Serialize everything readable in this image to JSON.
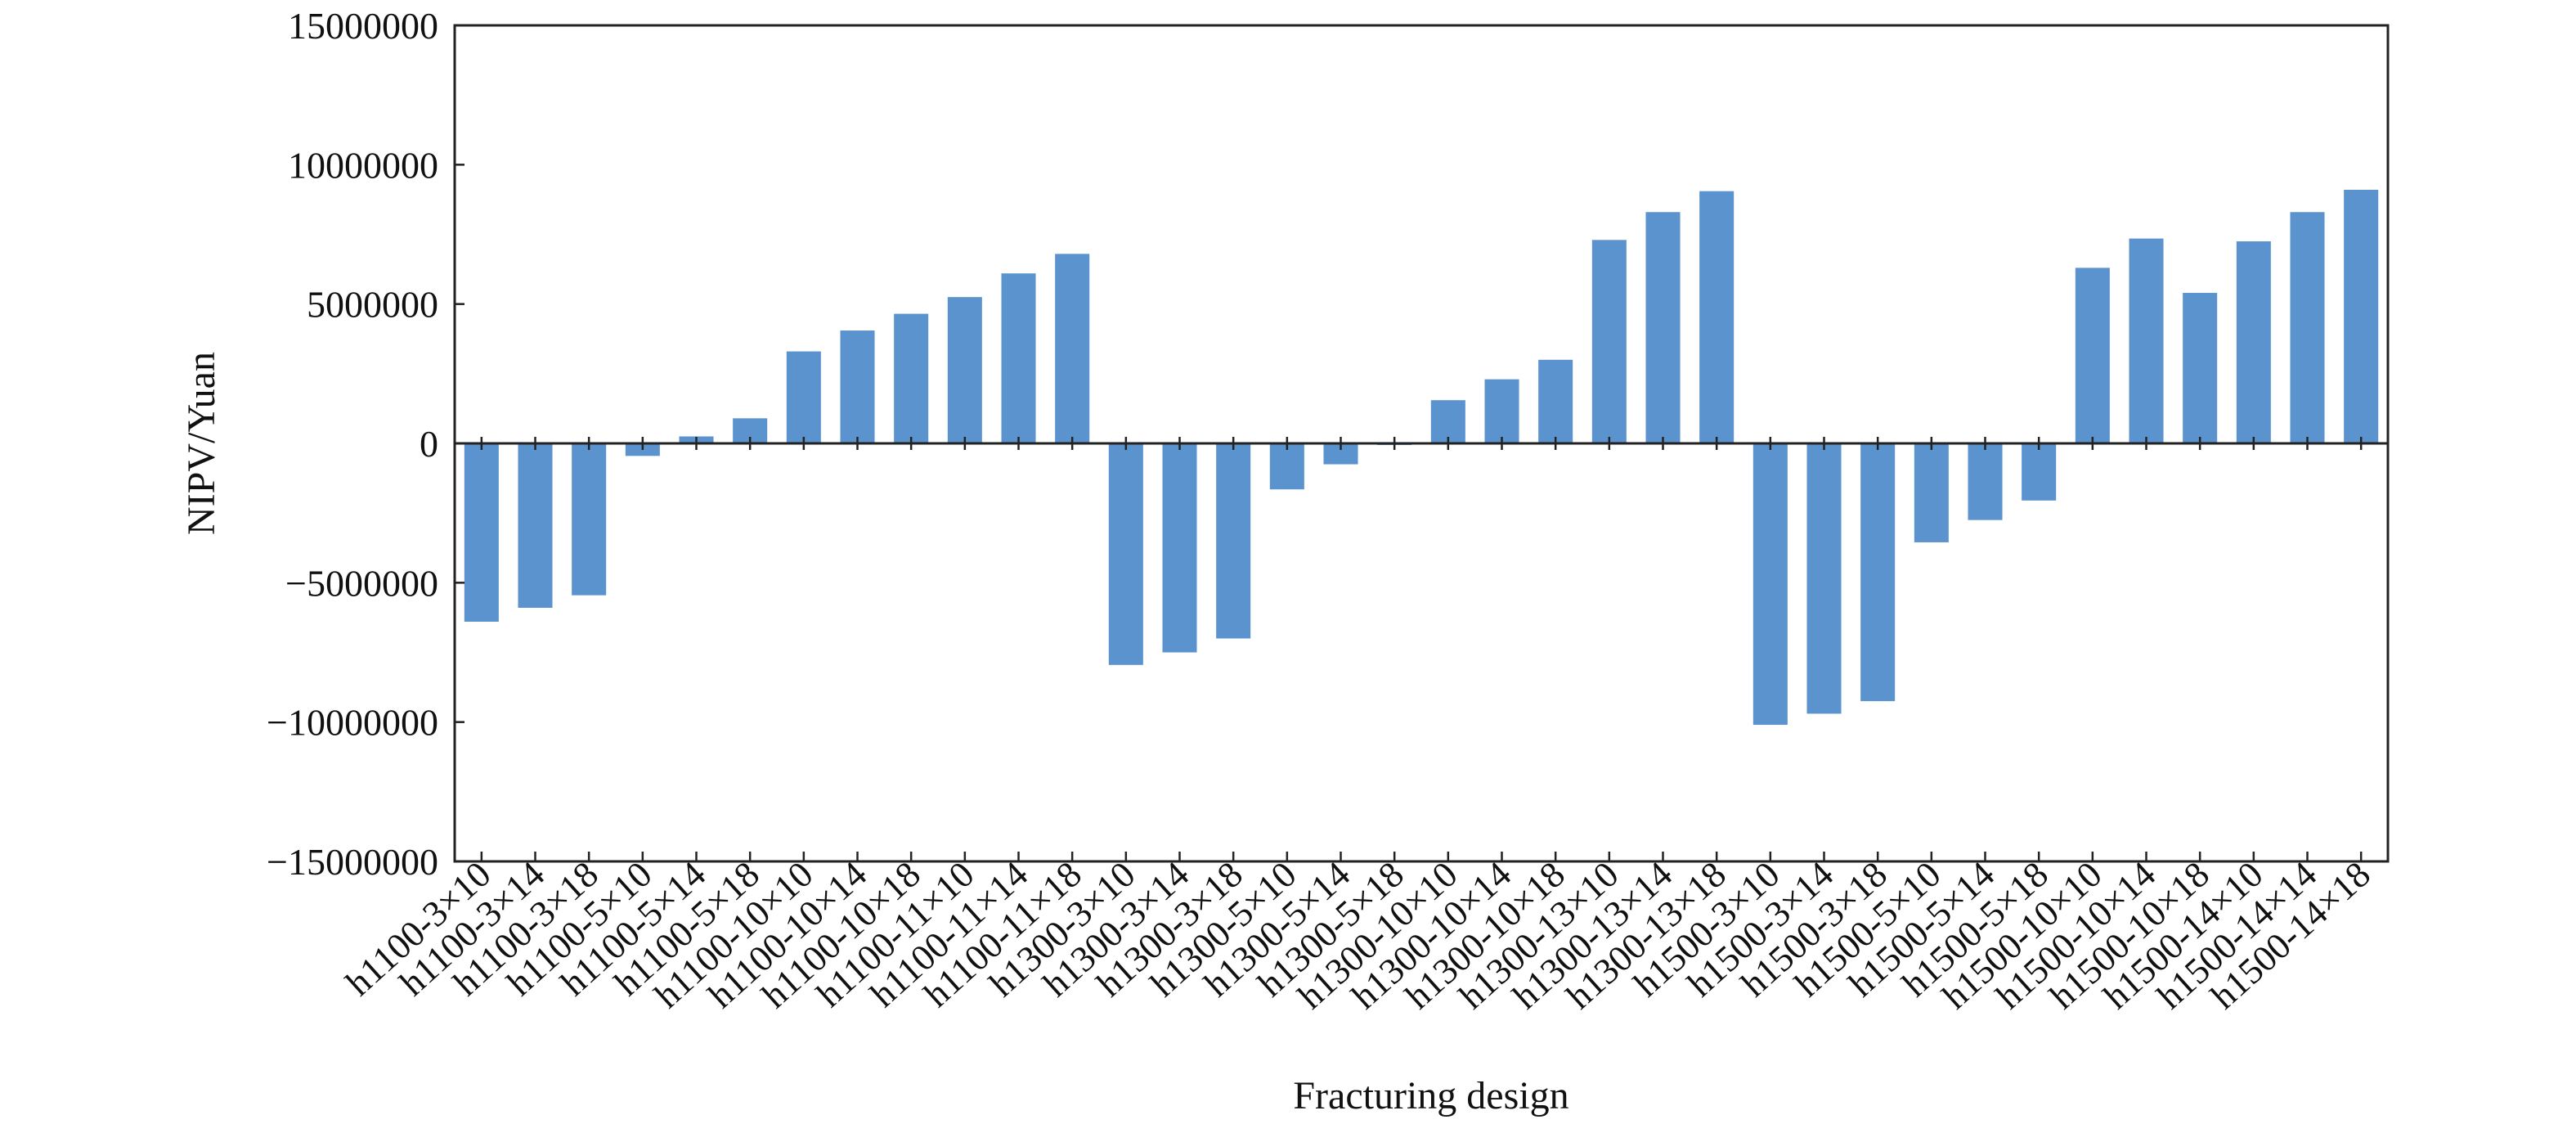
{
  "chart_data": {
    "type": "bar",
    "xlabel": "Fracturing design",
    "ylabel": "NIPV/Yuan",
    "ylim": [
      -15000000,
      15000000
    ],
    "yticks": [
      15000000,
      10000000,
      5000000,
      0,
      -5000000,
      -10000000,
      -15000000
    ],
    "ytick_labels": [
      "15000000",
      "10000000",
      "5000000",
      "0",
      "−5000000",
      "−10000000",
      "−15000000"
    ],
    "grid": false,
    "bar_color": "#5B93CF",
    "categories": [
      "h1100-3×10",
      "h1100-3×14",
      "h1100-3×18",
      "h1100-5×10",
      "h1100-5×14",
      "h1100-5×18",
      "h1100-10×10",
      "h1100-10×14",
      "h1100-10×18",
      "h1100-11×10",
      "h1100-11×14",
      "h1100-11×18",
      "h1300-3×10",
      "h1300-3×14",
      "h1300-3×18",
      "h1300-5×10",
      "h1300-5×14",
      "h1300-5×18",
      "h1300-10×10",
      "h1300-10×14",
      "h1300-10×18",
      "h1300-13×10",
      "h1300-13×14",
      "h1300-13×18",
      "h1500-3×10",
      "h1500-3×14",
      "h1500-3×18",
      "h1500-5×10",
      "h1500-5×14",
      "h1500-5×18",
      "h1500-10×10",
      "h1500-10×14",
      "h1500-10×18",
      "h1500-14×10",
      "h1500-14×14",
      "h1500-14×18"
    ],
    "values": [
      -6400000,
      -5900000,
      -5450000,
      -450000,
      250000,
      900000,
      3300000,
      4050000,
      4650000,
      5250000,
      6100000,
      6800000,
      -7950000,
      -7500000,
      -7000000,
      -1650000,
      -750000,
      -50000,
      1550000,
      2300000,
      3000000,
      7300000,
      8300000,
      9050000,
      -10100000,
      -9700000,
      -9250000,
      -3550000,
      -2750000,
      -2050000,
      6300000,
      7350000,
      5400000,
      7250000,
      8300000,
      9100000
    ]
  }
}
